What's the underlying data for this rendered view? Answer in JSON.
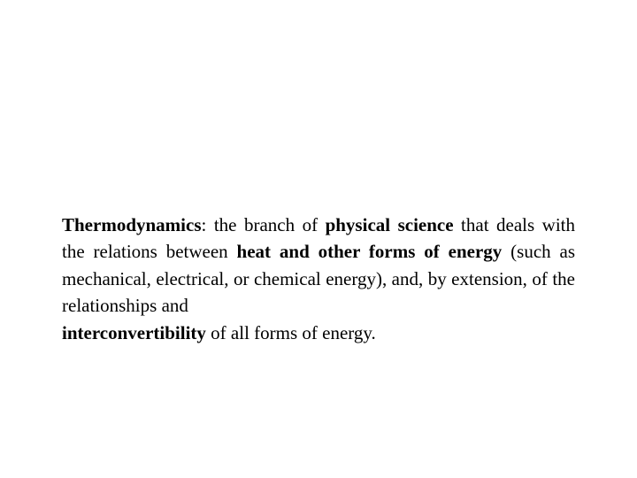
{
  "slide": {
    "background_color": "#ffffff",
    "text_color": "#000000",
    "font_family": "Garamond, Georgia, serif",
    "font_size_pt": 16,
    "definition": {
      "term": "Thermodynamics",
      "sep": ": the branch of ",
      "bold2": "physical science",
      "seg2": " that deals with  the relations between ",
      "bold3": "heat and other forms of energy",
      "seg3": " (such as mechanical,  electrical,  or  chemical energy), and, by extension, of   the   relationships   and ",
      "bold4": "interconvertibility",
      "seg4": " of all forms of energy."
    }
  }
}
